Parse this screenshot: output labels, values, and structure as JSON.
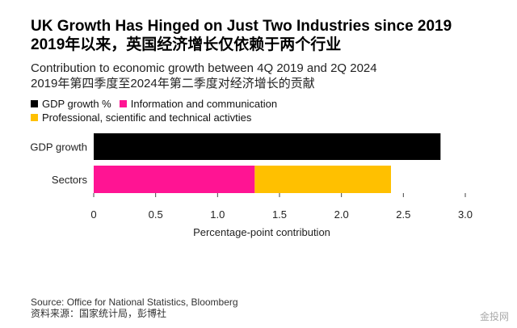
{
  "header": {
    "title_en": "UK Growth Has Hinged on Just Two Industries since 2019",
    "title_cn": "2019年以来，英国经济增长仅依赖于两个行业",
    "subtitle_en": "Contribution to economic growth between 4Q 2019 and 2Q 2024",
    "subtitle_cn": "2019年第四季度至2024年第二季度对经济增长的贡献"
  },
  "legend": [
    {
      "label": "GDP growth %",
      "color": "#000000"
    },
    {
      "label": "Information and communication",
      "color": "#ff1493"
    },
    {
      "label": "Professional, scientific and technical activties",
      "color": "#ffc000"
    }
  ],
  "chart_data": {
    "type": "bar",
    "orientation": "horizontal",
    "stacked": true,
    "categories": [
      "GDP growth",
      "Sectors"
    ],
    "series": [
      {
        "name": "GDP growth %",
        "color": "#000000",
        "values": [
          2.8,
          0
        ]
      },
      {
        "name": "Information and communication",
        "color": "#ff1493",
        "values": [
          0,
          1.3
        ]
      },
      {
        "name": "Professional, scientific and technical activties",
        "color": "#ffc000",
        "values": [
          0,
          1.1
        ]
      }
    ],
    "xticks": [
      "0",
      "0.5",
      "1.0",
      "1.5",
      "2.0",
      "2.5",
      "3.0"
    ],
    "xlim": [
      0,
      3.0
    ],
    "xlabel": "Percentage-point contribution",
    "grid": false,
    "legend_position": "top-left"
  },
  "footer": {
    "source_en": "Source: Office for National Statistics, Bloomberg",
    "source_cn": "资料来源：国家统计局，彭博社",
    "watermark": "金投网"
  }
}
